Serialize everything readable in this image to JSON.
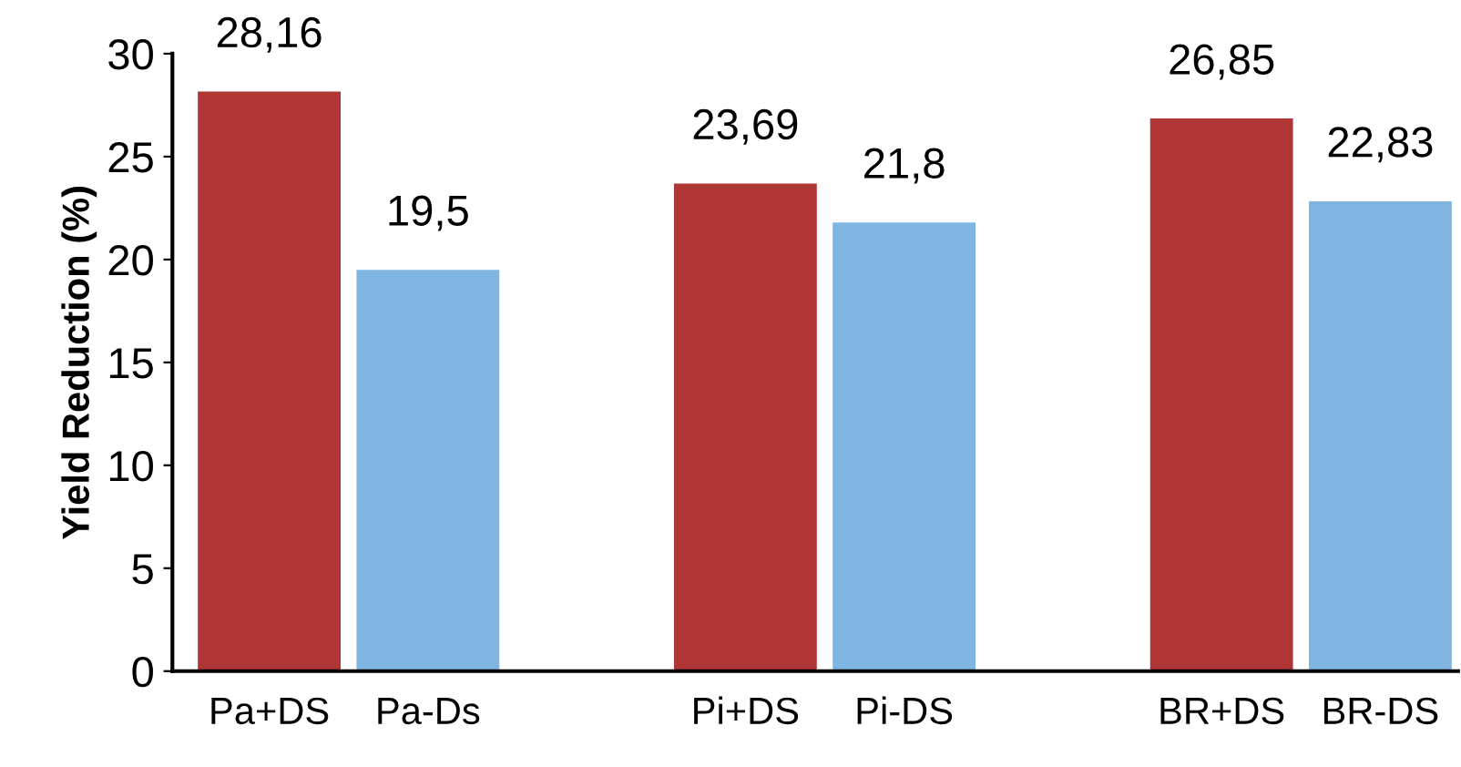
{
  "chart_data": {
    "type": "bar",
    "ylabel": "Yield Reduction (%)",
    "categories": [
      "Pa+DS",
      "Pa-Ds",
      null,
      "Pi+DS",
      "Pi-DS",
      null,
      "BR+DS",
      "BR-DS"
    ],
    "values": [
      28.16,
      19.5,
      null,
      23.69,
      21.8,
      null,
      26.85,
      22.83
    ],
    "colors": [
      "#b03535",
      "#7fb5e0",
      null,
      "#b03535",
      "#7fb5e0",
      null,
      "#b03535",
      "#7fb5e0"
    ],
    "value_labels": [
      "28,16",
      "19,5",
      null,
      "23,69",
      "21,8",
      null,
      "26,85",
      "22,83"
    ],
    "ylim": [
      0,
      30
    ],
    "yticks": [
      0,
      5,
      10,
      15,
      20,
      25,
      30
    ],
    "grid": false
  }
}
